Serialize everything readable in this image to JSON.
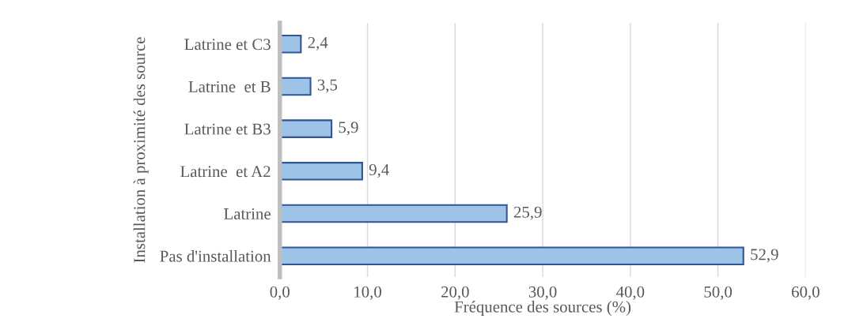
{
  "chart_data": {
    "type": "bar",
    "orientation": "horizontal",
    "ylabel": "Installation à proximité des source",
    "xlabel": "Fréquence des sources (%)",
    "categories": [
      "Latrine et C3",
      "Latrine  et B",
      "Latrine et B3",
      "Latrine  et A2",
      "Latrine",
      "Pas d'installation"
    ],
    "values": [
      2.4,
      3.5,
      5.9,
      9.4,
      25.9,
      52.9
    ],
    "value_labels": [
      "2,4",
      "3,5",
      "5,9",
      "9,4",
      "25,9",
      "52,9"
    ],
    "color": "#9dc3e6",
    "xlim": [
      0,
      60
    ],
    "xticks": [
      {
        "value": 0,
        "label": "0,0"
      },
      {
        "value": 10,
        "label": "10,0"
      },
      {
        "value": 20,
        "label": "20,0"
      },
      {
        "value": 30,
        "label": "30,0"
      },
      {
        "value": 40,
        "label": "40,0"
      },
      {
        "value": 50,
        "label": "50,0"
      },
      {
        "value": 60,
        "label": "60,0"
      }
    ],
    "grid": "x",
    "legend": false
  }
}
